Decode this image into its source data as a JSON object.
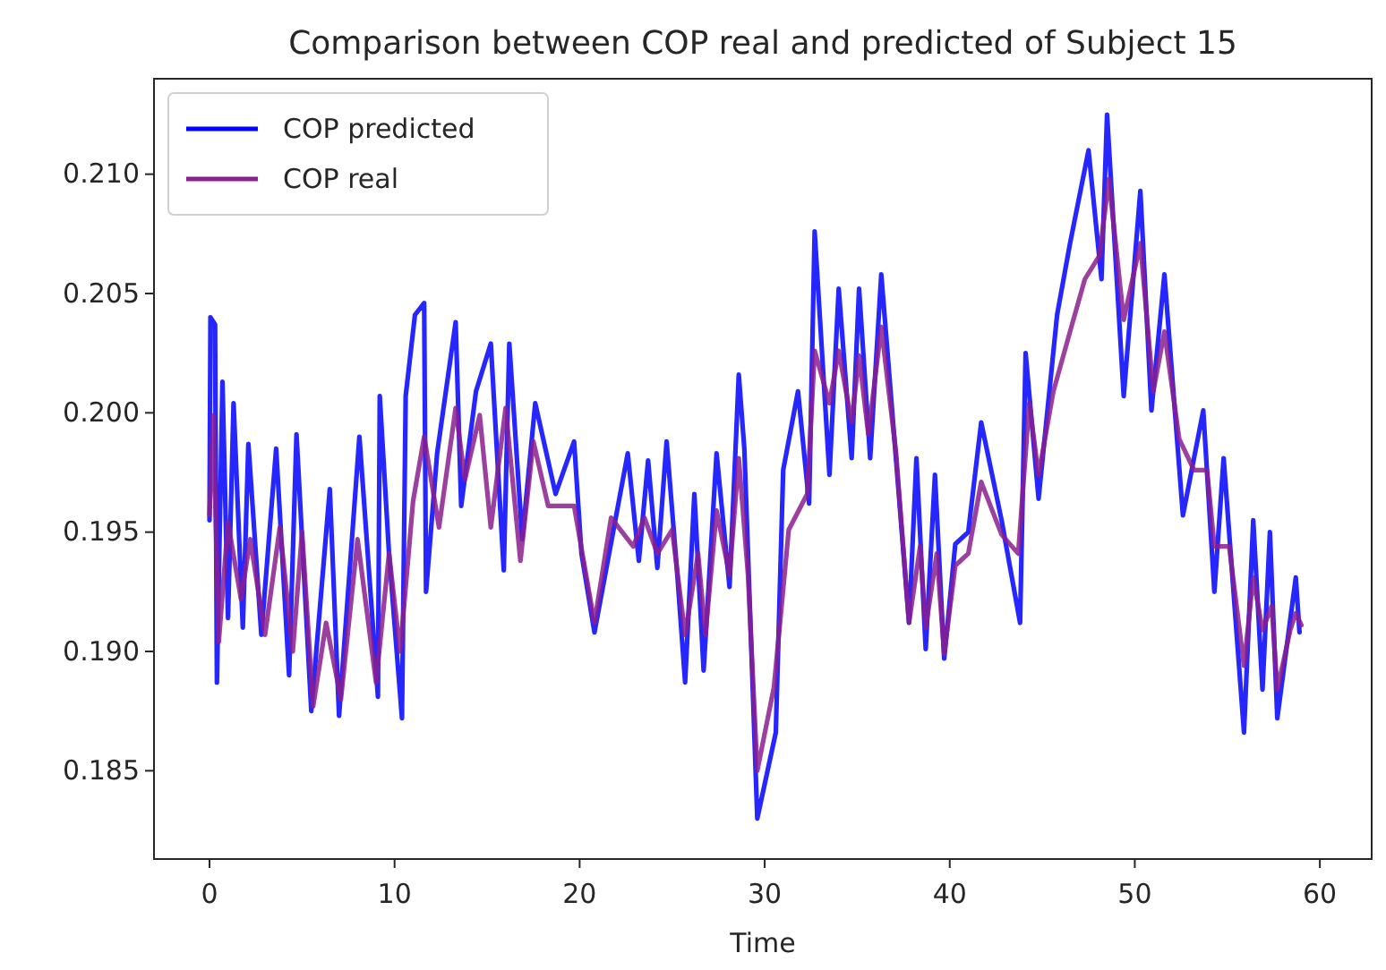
{
  "chart_data": {
    "type": "line",
    "title": "Comparison between COP real and predicted of Subject 15",
    "xlabel": "Time",
    "xlim": [
      -3,
      62.8
    ],
    "ylim": [
      0.1813,
      0.214
    ],
    "xticks": [
      0,
      10,
      20,
      30,
      40,
      50,
      60
    ],
    "yticks": [
      {
        "value": 0.185,
        "label": "0.185"
      },
      {
        "value": 0.19,
        "label": "0.190"
      },
      {
        "value": 0.195,
        "label": "0.195"
      },
      {
        "value": 0.2,
        "label": "0.200"
      },
      {
        "value": 0.205,
        "label": "0.205"
      },
      {
        "value": 0.21,
        "label": "0.210"
      }
    ],
    "legend": "top left",
    "grid": false,
    "line_style": "solid",
    "marker": "none",
    "series": [
      {
        "name": "COP predicted",
        "color": "#0000ff",
        "x": [
          0,
          0.05,
          0.3,
          0.4,
          0.7,
          1.0,
          1.3,
          1.8,
          2.1,
          2.8,
          3.6,
          4.3,
          4.7,
          5.5,
          6.5,
          7.0,
          8.1,
          9.1,
          9.2,
          9.7,
          10.4,
          10.6,
          11.1,
          11.6,
          11.7,
          12.3,
          13.3,
          13.6,
          14.4,
          15.2,
          15.9,
          16.2,
          16.9,
          17.6,
          18.7,
          19.7,
          20.1,
          20.8,
          22.6,
          23.2,
          23.7,
          24.2,
          24.7,
          25.3,
          25.7,
          26.2,
          26.7,
          27.4,
          28.1,
          28.6,
          28.9,
          29.6,
          30.6,
          31.0,
          31.8,
          32.4,
          32.7,
          33.5,
          34.0,
          34.7,
          35.1,
          35.7,
          36.3,
          37.0,
          37.8,
          38.2,
          38.7,
          39.2,
          39.7,
          40.3,
          41.0,
          41.7,
          42.8,
          43.8,
          44.1,
          44.8,
          45.8,
          46.5,
          47.5,
          48.2,
          48.5,
          49.4,
          50.3,
          50.9,
          51.6,
          52.6,
          53.7,
          54.3,
          54.8,
          55.9,
          56.4,
          56.9,
          57.3,
          57.7,
          58.7,
          58.9
        ],
        "values": [
          0.1955,
          0.204,
          0.2037,
          0.1887,
          0.2013,
          0.1914,
          0.2004,
          0.191,
          0.1987,
          0.1907,
          0.1985,
          0.189,
          0.1991,
          0.1875,
          0.1968,
          0.1873,
          0.199,
          0.1881,
          0.2007,
          0.1941,
          0.1872,
          0.2007,
          0.2041,
          0.2046,
          0.1925,
          0.1983,
          0.2038,
          0.1961,
          0.2009,
          0.2029,
          0.1934,
          0.2029,
          0.1947,
          0.2004,
          0.1966,
          0.1988,
          0.1941,
          0.1908,
          0.1983,
          0.1938,
          0.198,
          0.1935,
          0.1988,
          0.193,
          0.1887,
          0.1966,
          0.1892,
          0.1983,
          0.1927,
          0.2016,
          0.1985,
          0.183,
          0.1866,
          0.1976,
          0.2009,
          0.1962,
          0.2076,
          0.1974,
          0.2052,
          0.1981,
          0.2052,
          0.1981,
          0.2058,
          0.199,
          0.1912,
          0.1981,
          0.1901,
          0.1974,
          0.1897,
          0.1945,
          0.195,
          0.1996,
          0.1955,
          0.1912,
          0.2025,
          0.1964,
          0.2041,
          0.2071,
          0.211,
          0.2056,
          0.2125,
          0.2007,
          0.2093,
          0.2001,
          0.2058,
          0.1957,
          0.2001,
          0.1925,
          0.1981,
          0.1866,
          0.1955,
          0.1884,
          0.195,
          0.1872,
          0.1931,
          0.1908
        ]
      },
      {
        "name": "COP real",
        "color": "#8b1f8f",
        "x": [
          0,
          0.2,
          0.5,
          1.0,
          1.7,
          2.2,
          3.0,
          3.8,
          4.5,
          5.0,
          5.6,
          6.3,
          7.1,
          8.0,
          9.0,
          9.7,
          10.3,
          11.0,
          11.6,
          12.4,
          13.3,
          13.8,
          14.6,
          15.2,
          16.0,
          16.8,
          17.5,
          18.3,
          19.7,
          20.8,
          21.7,
          22.9,
          23.5,
          24.2,
          25.0,
          25.7,
          26.4,
          26.8,
          27.4,
          28.1,
          28.6,
          29.1,
          29.6,
          30.5,
          31.3,
          32.3,
          32.7,
          33.5,
          34.0,
          34.7,
          35.1,
          35.6,
          36.3,
          37.1,
          37.8,
          38.4,
          38.7,
          39.3,
          39.7,
          40.3,
          41.0,
          41.7,
          42.8,
          43.7,
          44.3,
          44.8,
          45.6,
          46.5,
          47.3,
          48.1,
          48.6,
          49.4,
          50.3,
          51.0,
          51.6,
          52.4,
          53.2,
          53.9,
          54.3,
          55.1,
          55.9,
          56.4,
          56.9,
          57.4,
          57.7,
          58.4,
          58.7,
          59.0
        ],
        "values": [
          0.1957,
          0.1999,
          0.1904,
          0.1954,
          0.1922,
          0.1947,
          0.1907,
          0.1952,
          0.19,
          0.195,
          0.1877,
          0.1912,
          0.188,
          0.1947,
          0.1887,
          0.1941,
          0.19,
          0.1963,
          0.199,
          0.1952,
          0.2002,
          0.1972,
          0.1999,
          0.1952,
          0.2002,
          0.1938,
          0.1988,
          0.1961,
          0.1961,
          0.1912,
          0.1956,
          0.1944,
          0.1956,
          0.1941,
          0.1951,
          0.1907,
          0.1941,
          0.1907,
          0.1959,
          0.1932,
          0.1981,
          0.1932,
          0.185,
          0.1885,
          0.1951,
          0.1966,
          0.2026,
          0.2004,
          0.2026,
          0.1996,
          0.2024,
          0.1991,
          0.2036,
          0.1983,
          0.1912,
          0.1944,
          0.191,
          0.1941,
          0.1899,
          0.1936,
          0.1941,
          0.1971,
          0.1949,
          0.1941,
          0.2004,
          0.1974,
          0.2009,
          0.2034,
          0.2056,
          0.2066,
          0.2098,
          0.2039,
          0.2071,
          0.2009,
          0.2034,
          0.1989,
          0.1976,
          0.1976,
          0.1944,
          0.1944,
          0.1894,
          0.1931,
          0.1909,
          0.1919,
          0.1884,
          0.1909,
          0.1916,
          0.1911
        ]
      }
    ]
  }
}
